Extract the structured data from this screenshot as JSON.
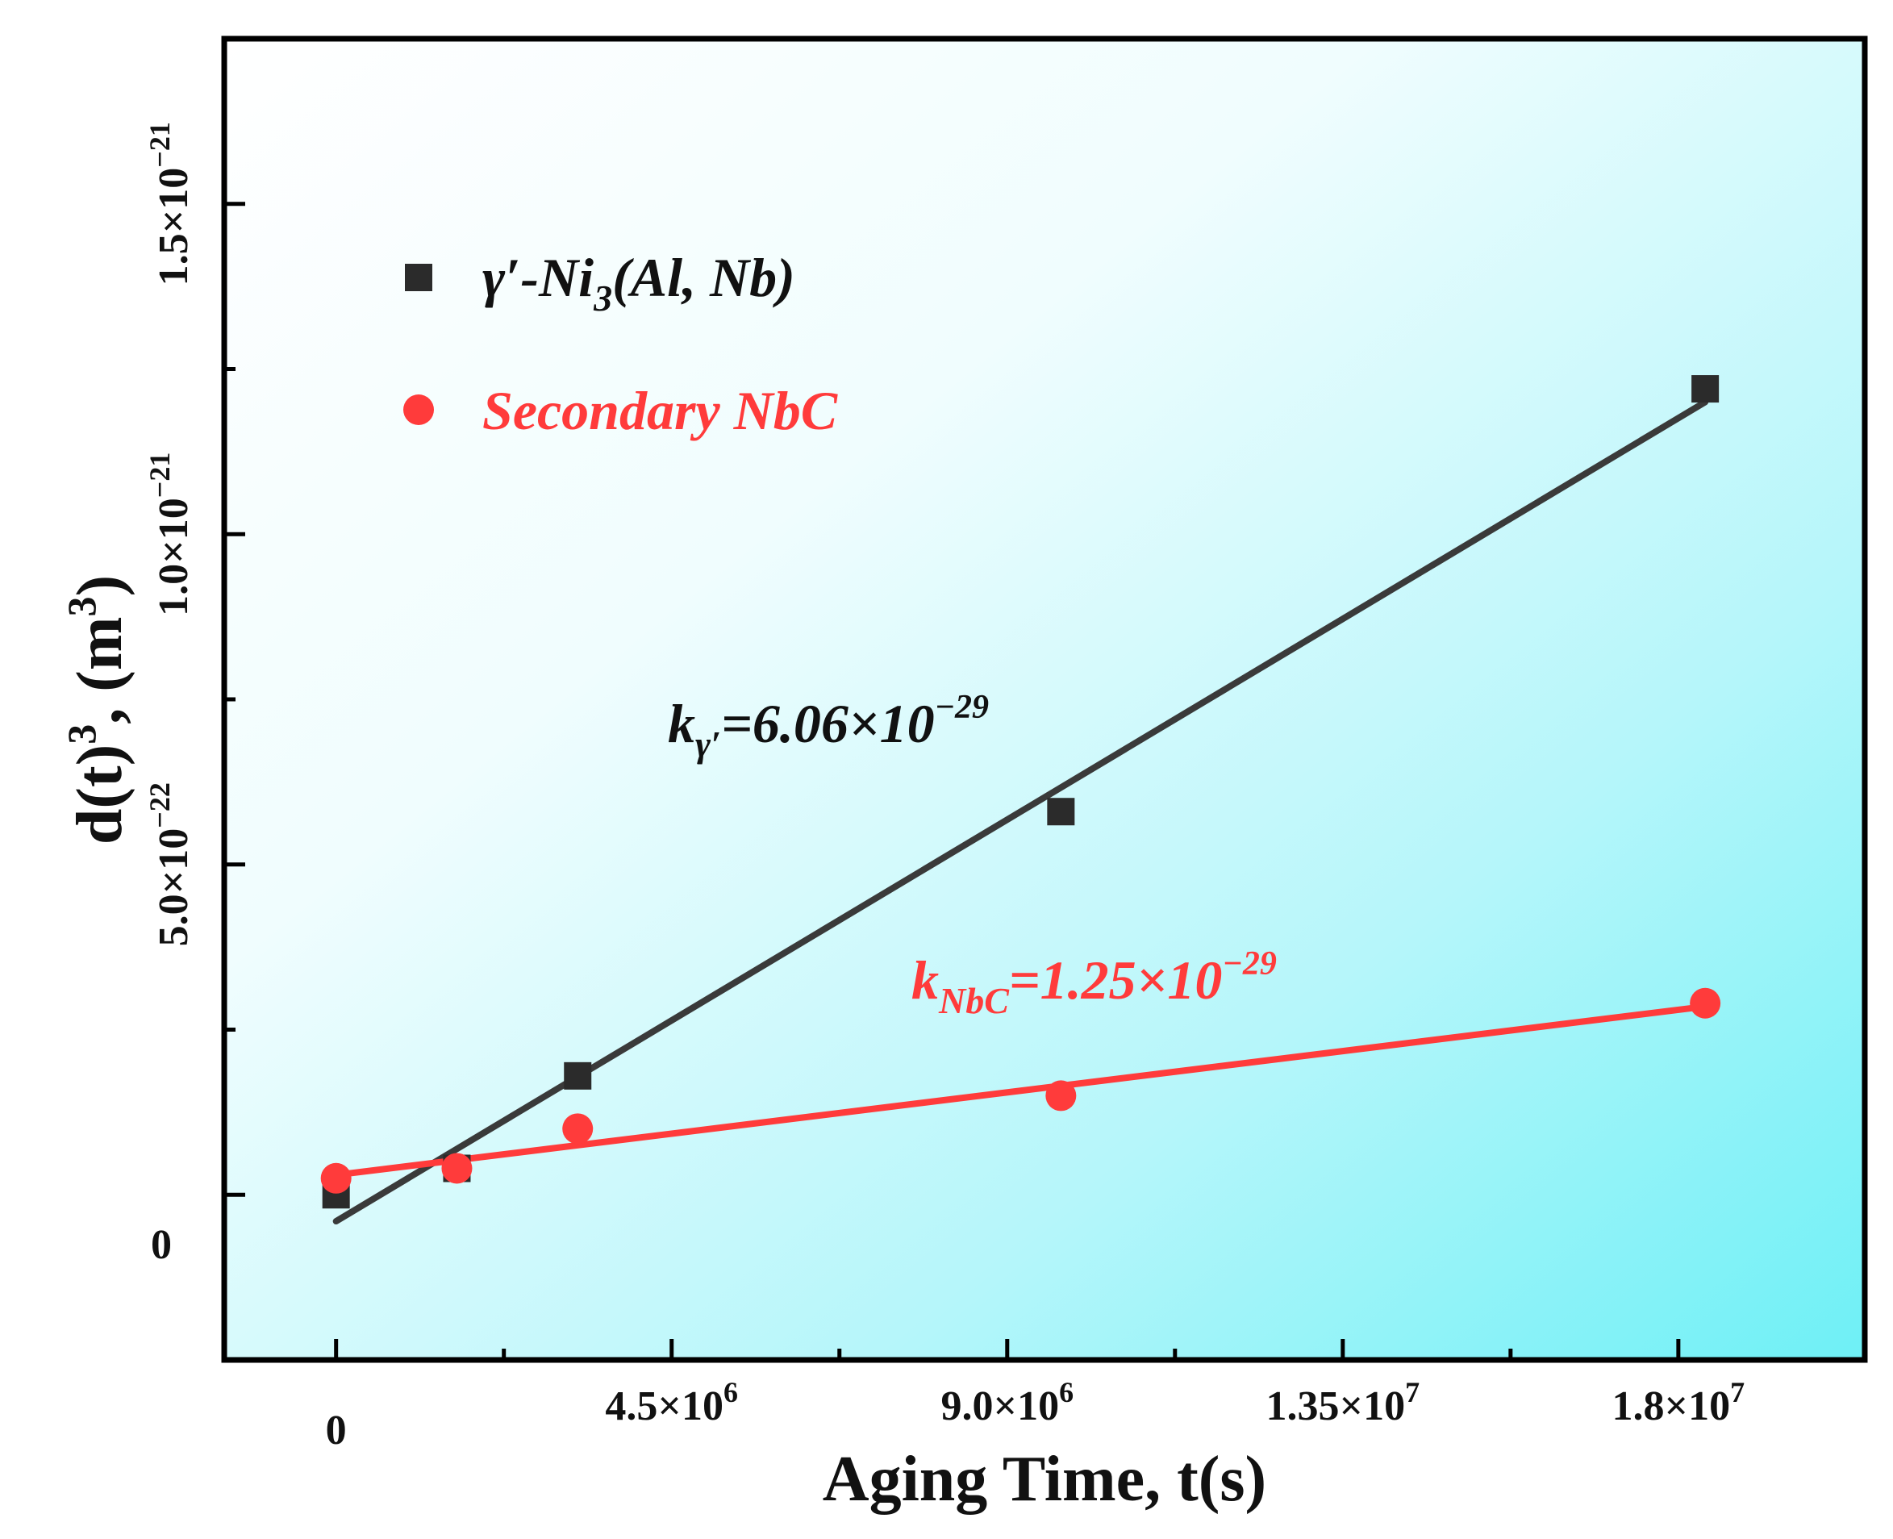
{
  "chart_data": {
    "type": "scatter",
    "title": "",
    "xlabel": "Aging Time, t(s)",
    "ylabel": {
      "base": "d(t)",
      "exp": "3",
      "unit_pre": ", (m",
      "unit_exp": "3",
      "unit_post": ")"
    },
    "xlim": [
      -1500000,
      20500000
    ],
    "ylim": [
      -250000000000000000000,
      1750000000000000000000
    ],
    "grid": false,
    "legend_position": "top-left",
    "x_ticks": [
      {
        "value": 0,
        "mantissa": "0",
        "exp": ""
      },
      {
        "value": 4500000,
        "mantissa": "4.5×10",
        "exp": "6"
      },
      {
        "value": 9000000,
        "mantissa": "9.0×10",
        "exp": "6"
      },
      {
        "value": 13500000,
        "mantissa": "1.35×10",
        "exp": "7"
      },
      {
        "value": 18000000,
        "mantissa": "1.8×10",
        "exp": "7"
      }
    ],
    "x_minor_ticks": [
      2250000,
      6750000,
      11250000,
      15750000
    ],
    "y_ticks": [
      {
        "value": 0,
        "mantissa": "0",
        "exp": ""
      },
      {
        "value": 500000000000000000000,
        "mantissa": "5.0×10",
        "exp": "−22"
      },
      {
        "value": 1000000000000000000000,
        "mantissa": "1.0×10",
        "exp": "−21"
      },
      {
        "value": 1500000000000000000000,
        "mantissa": "1.5×10",
        "exp": "−21"
      }
    ],
    "y_minor_ticks": [
      250000000000000000000,
      750000000000000000000,
      1250000000000000000000
    ],
    "series": [
      {
        "name": "γ′-Ni₃(Al, Nb)",
        "legend_main": "γ′-Ni",
        "legend_sub": "3",
        "legend_post": "(Al, Nb)",
        "marker": "square",
        "color": "#2b2b2b",
        "x": [
          0,
          1620000,
          3240000,
          9720000,
          18360000
        ],
        "y": [
          0,
          40000000000000000000,
          180000000000000000000,
          580000000000000000000,
          1220000000000000000000
        ],
        "fit": {
          "x": [
            0,
            18360000
          ],
          "y": [
            -40000000000000000000,
            1200000000000000000000
          ],
          "color": "#3a3a3a"
        }
      },
      {
        "name": "Secondary NbC",
        "legend_main": "Secondary NbC",
        "legend_sub": "",
        "legend_post": "",
        "marker": "circle",
        "color": "#ff3b3b",
        "x": [
          0,
          1620000,
          3240000,
          9720000,
          18360000
        ],
        "y": [
          25000000000000000000,
          40000000000000000000,
          100000000000000000000,
          150000000000000000000,
          290000000000000000000
        ],
        "fit": {
          "x": [
            0,
            18360000
          ],
          "y": [
            30000000000000000000,
            285000000000000000000
          ],
          "color": "#ff3b3b"
        }
      }
    ],
    "annotations": [
      {
        "main": "k",
        "sub": "γ′",
        "text": "=6.06×10",
        "sup": "−29",
        "color": "#111111"
      },
      {
        "main": "k",
        "sub": "NbC",
        "text": "=1.25×10",
        "sup": "−29",
        "color": "#ff3b3b"
      }
    ]
  }
}
